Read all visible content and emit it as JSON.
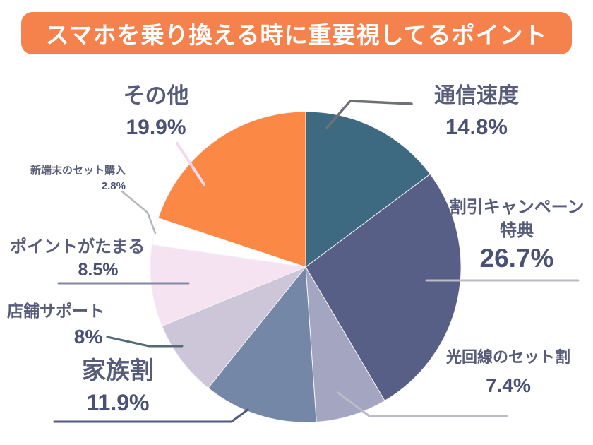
{
  "header": {
    "title": "スマホを乗り換える時に重要視してるポイント"
  },
  "chart_data": {
    "type": "pie",
    "title": "スマホを乗り換える時に重要視してるポイント",
    "unit": "%",
    "direction": "clockwise",
    "start_angle_deg": 0,
    "legend": "none",
    "labels_as_callouts": true,
    "categories": [
      "通信速度",
      "割引キャンペーン特典",
      "光回線のセット割",
      "家族割",
      "店舗サポート",
      "ポイントがたまる",
      "新端末のセット購入",
      "その他"
    ],
    "values": [
      14.8,
      26.7,
      7.4,
      11.9,
      8,
      8.5,
      2.8,
      19.9
    ],
    "colors": [
      "#3e6a81",
      "#575f86",
      "#a4a6c1",
      "#7487a6",
      "#cdc6d8",
      "#f5e3f2",
      "#ffffff",
      "#fc8845"
    ]
  },
  "callouts": [
    {
      "label": "通信速度",
      "percent": "14.8%"
    },
    {
      "label": "割引キャンペーン\n特典",
      "percent": "26.7%"
    },
    {
      "label": "光回線のセット割",
      "percent": "7.4%"
    },
    {
      "label": "家族割",
      "percent": "11.9%"
    },
    {
      "label": "店舗サポート",
      "percent": "8%"
    },
    {
      "label": "ポイントがたまる",
      "percent": "8.5%"
    },
    {
      "label": "新端末のセット購入",
      "percent": "2.8%"
    },
    {
      "label": "その他",
      "percent": "19.9%"
    }
  ],
  "colors": {
    "header_bg": "#f5824d",
    "header_text": "#ffffff",
    "label_text": "#565c79",
    "percent_text": "#4b5175"
  }
}
